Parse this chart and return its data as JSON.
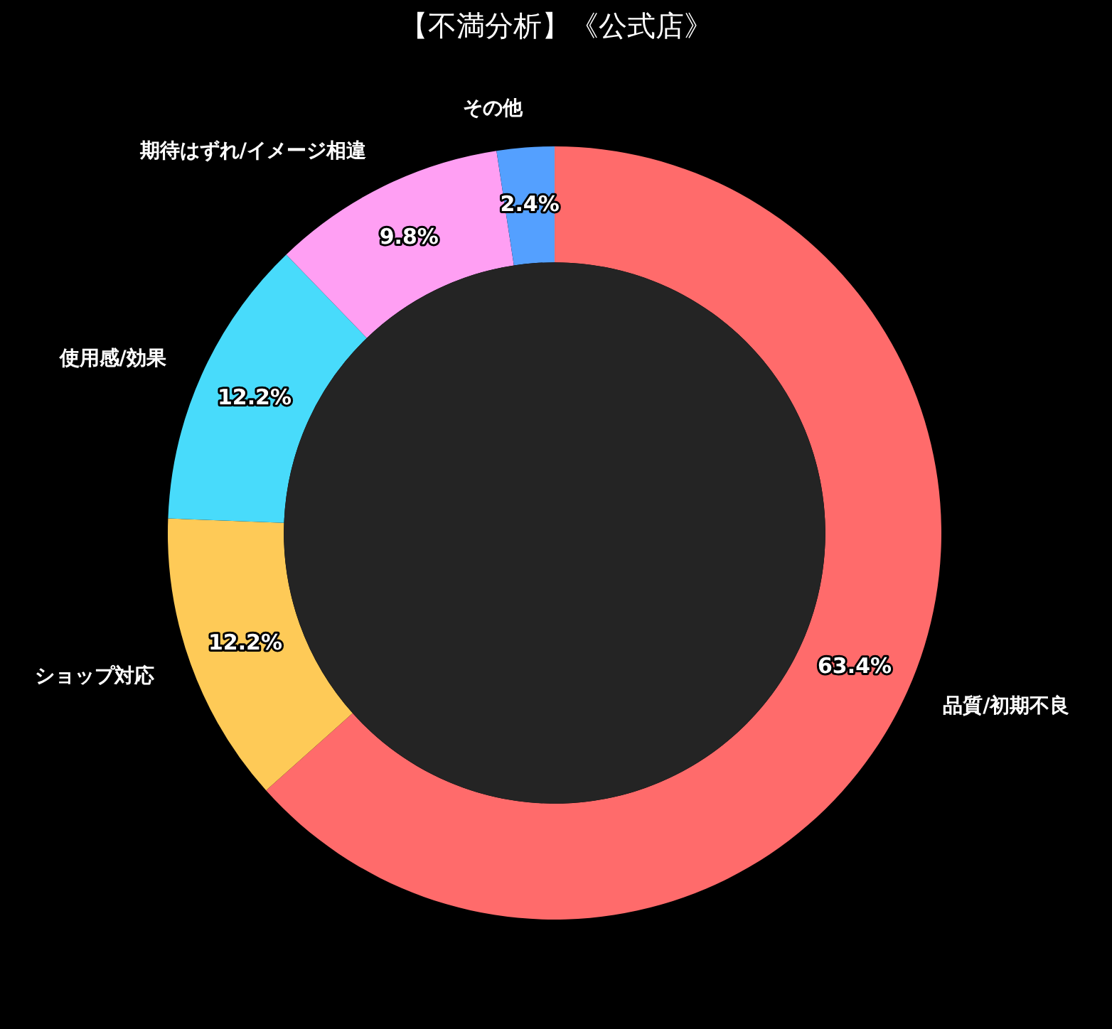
{
  "chart_data": {
    "type": "donut",
    "title": "【不満分析】《公式店》",
    "categories": [
      "品質/初期不良",
      "ショップ対応",
      "使用感/効果",
      "期待はずれ/イメージ相違",
      "その他"
    ],
    "values": [
      63.4,
      12.2,
      12.2,
      9.8,
      2.4
    ],
    "colors": [
      "#ff6b6b",
      "#feca57",
      "#48dbfb",
      "#ff9ff3",
      "#54a0ff"
    ],
    "value_labels": [
      "63.4%",
      "12.2%",
      "12.2%",
      "9.8%",
      "2.4%"
    ],
    "legend": false
  }
}
